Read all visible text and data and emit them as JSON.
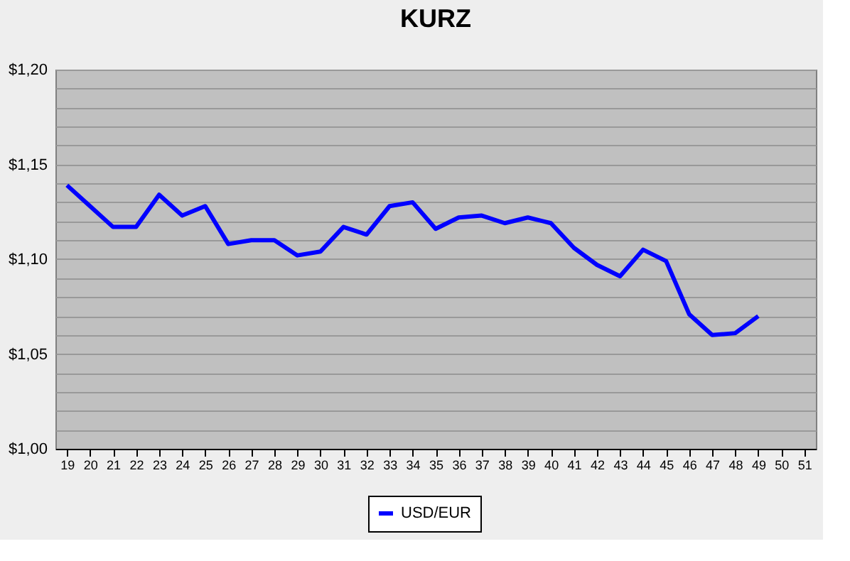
{
  "chart_data": {
    "type": "line",
    "title": "KURZ",
    "categories": [
      "19",
      "20",
      "21",
      "22",
      "23",
      "24",
      "25",
      "26",
      "27",
      "28",
      "29",
      "30",
      "31",
      "32",
      "33",
      "34",
      "35",
      "36",
      "37",
      "38",
      "39",
      "40",
      "41",
      "42",
      "43",
      "44",
      "45",
      "46",
      "47",
      "48",
      "49",
      "50",
      "51"
    ],
    "series": [
      {
        "name": "USD/EUR",
        "color": "#0000ff",
        "values": [
          1.139,
          1.128,
          1.117,
          1.117,
          1.134,
          1.123,
          1.128,
          1.108,
          1.11,
          1.11,
          1.102,
          1.104,
          1.117,
          1.113,
          1.128,
          1.13,
          1.116,
          1.122,
          1.123,
          1.119,
          1.122,
          1.119,
          1.106,
          1.097,
          1.091,
          1.105,
          1.099,
          1.071,
          1.06,
          1.061,
          1.07,
          null,
          null
        ]
      }
    ],
    "ylim": [
      1.0,
      1.2
    ],
    "yticks": [
      {
        "value": 1.0,
        "label": "$1,00"
      },
      {
        "value": 1.01,
        "label": null
      },
      {
        "value": 1.02,
        "label": null
      },
      {
        "value": 1.03,
        "label": null
      },
      {
        "value": 1.04,
        "label": null
      },
      {
        "value": 1.05,
        "label": "$1,05"
      },
      {
        "value": 1.06,
        "label": null
      },
      {
        "value": 1.07,
        "label": null
      },
      {
        "value": 1.08,
        "label": null
      },
      {
        "value": 1.09,
        "label": null
      },
      {
        "value": 1.1,
        "label": "$1,10"
      },
      {
        "value": 1.11,
        "label": null
      },
      {
        "value": 1.12,
        "label": null
      },
      {
        "value": 1.13,
        "label": null
      },
      {
        "value": 1.14,
        "label": null
      },
      {
        "value": 1.15,
        "label": "$1,15"
      },
      {
        "value": 1.16,
        "label": null
      },
      {
        "value": 1.17,
        "label": null
      },
      {
        "value": 1.18,
        "label": null
      },
      {
        "value": 1.19,
        "label": null
      },
      {
        "value": 1.2,
        "label": "$1,20"
      }
    ],
    "grid": "y",
    "legend": "bottom",
    "marker": "none",
    "line_style": "solid"
  }
}
